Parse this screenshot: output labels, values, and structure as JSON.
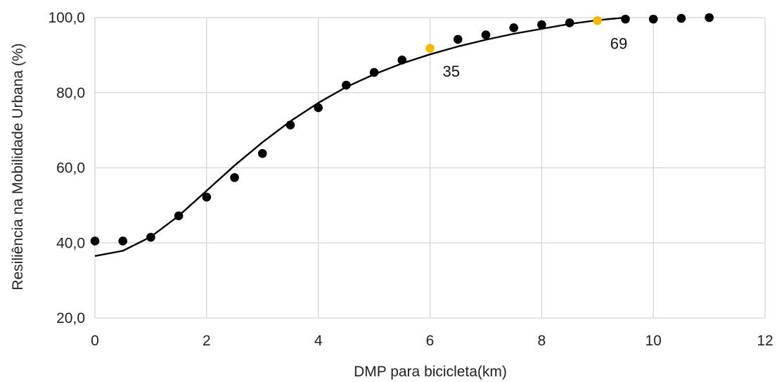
{
  "chart_data": {
    "type": "scatter",
    "xlabel": "DMP para bicicleta(km)",
    "ylabel": "Resiliência na Mobilidade Urbana (%)",
    "xlim": [
      0,
      12
    ],
    "ylim": [
      20,
      100
    ],
    "x_ticks": [
      "0",
      "2",
      "4",
      "6",
      "8",
      "10",
      "12"
    ],
    "y_ticks": [
      "20,0",
      "40,0",
      "60,0",
      "80,0",
      "100,0"
    ],
    "grid": true,
    "legend": "none",
    "series": [
      {
        "kind": "points",
        "color": "#000000",
        "x": [
          0,
          0.5,
          1,
          1.5,
          2,
          2.5,
          3,
          3.5,
          4,
          4.5,
          5,
          5.5,
          6.5,
          7,
          7.5,
          8,
          8.5,
          9.5,
          10,
          10.5,
          11
        ],
        "y": [
          40.5,
          40.5,
          41.5,
          47.2,
          52.2,
          57.4,
          63.8,
          71.4,
          76.0,
          82.0,
          85.4,
          88.7,
          94.2,
          95.4,
          97.3,
          98.1,
          98.6,
          99.6,
          99.6,
          99.8,
          100.0
        ]
      },
      {
        "kind": "points",
        "color": "#f5b800",
        "x": [
          6,
          9
        ],
        "y": [
          91.8,
          99.2
        ]
      },
      {
        "kind": "line",
        "color": "#000000",
        "x": [
          0,
          0.5,
          1,
          1.5,
          2,
          2.5,
          3,
          3.5,
          4,
          4.5,
          5,
          5.5,
          6,
          6.5,
          7,
          7.5,
          8,
          8.5,
          9,
          9.5
        ],
        "y": [
          36.5,
          37.9,
          41.6,
          47.2,
          53.9,
          60.6,
          66.8,
          72.4,
          77.3,
          81.5,
          84.9,
          87.8,
          90.2,
          92.3,
          94.1,
          95.7,
          97.0,
          98.3,
          99.3,
          100.0
        ]
      }
    ],
    "annotations": [
      {
        "text": "35",
        "x": 6,
        "y": 91.8
      },
      {
        "text": "69",
        "x": 9,
        "y": 99.2
      }
    ]
  }
}
